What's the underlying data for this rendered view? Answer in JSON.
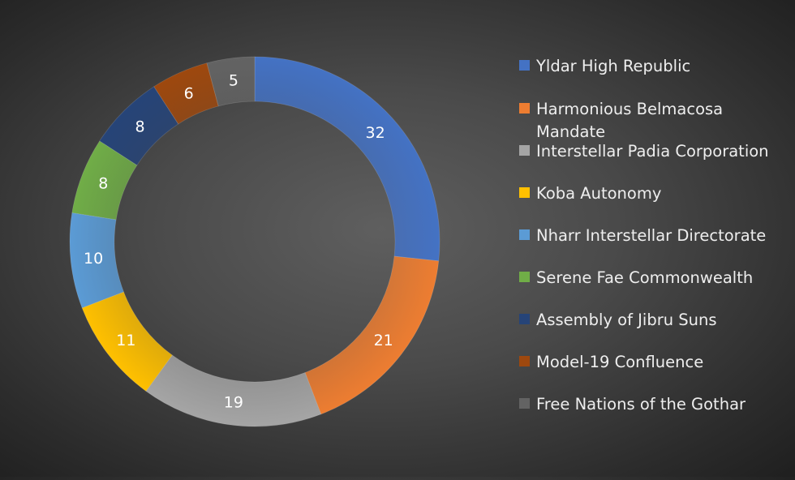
{
  "chart_data": {
    "type": "pie",
    "style": "doughnut",
    "title": "",
    "legend_position": "right",
    "categories": [
      "Yldar High Republic",
      "Harmonious Belmacosa Mandate",
      "Interstellar Padia Corporation",
      "Koba Autonomy",
      "Nharr Interstellar Directorate",
      "Serene Fae Commonwealth",
      "Assembly of Jibru Suns",
      "Model-19 Confluence",
      "Free Nations of the Gothar"
    ],
    "values": [
      32,
      21,
      19,
      11,
      10,
      8,
      8,
      6,
      5
    ],
    "colors": [
      "#4472c4",
      "#ed7d31",
      "#a5a5a5",
      "#ffc000",
      "#5b9bd5",
      "#70ad47",
      "#264478",
      "#9e480e",
      "#636363"
    ]
  }
}
